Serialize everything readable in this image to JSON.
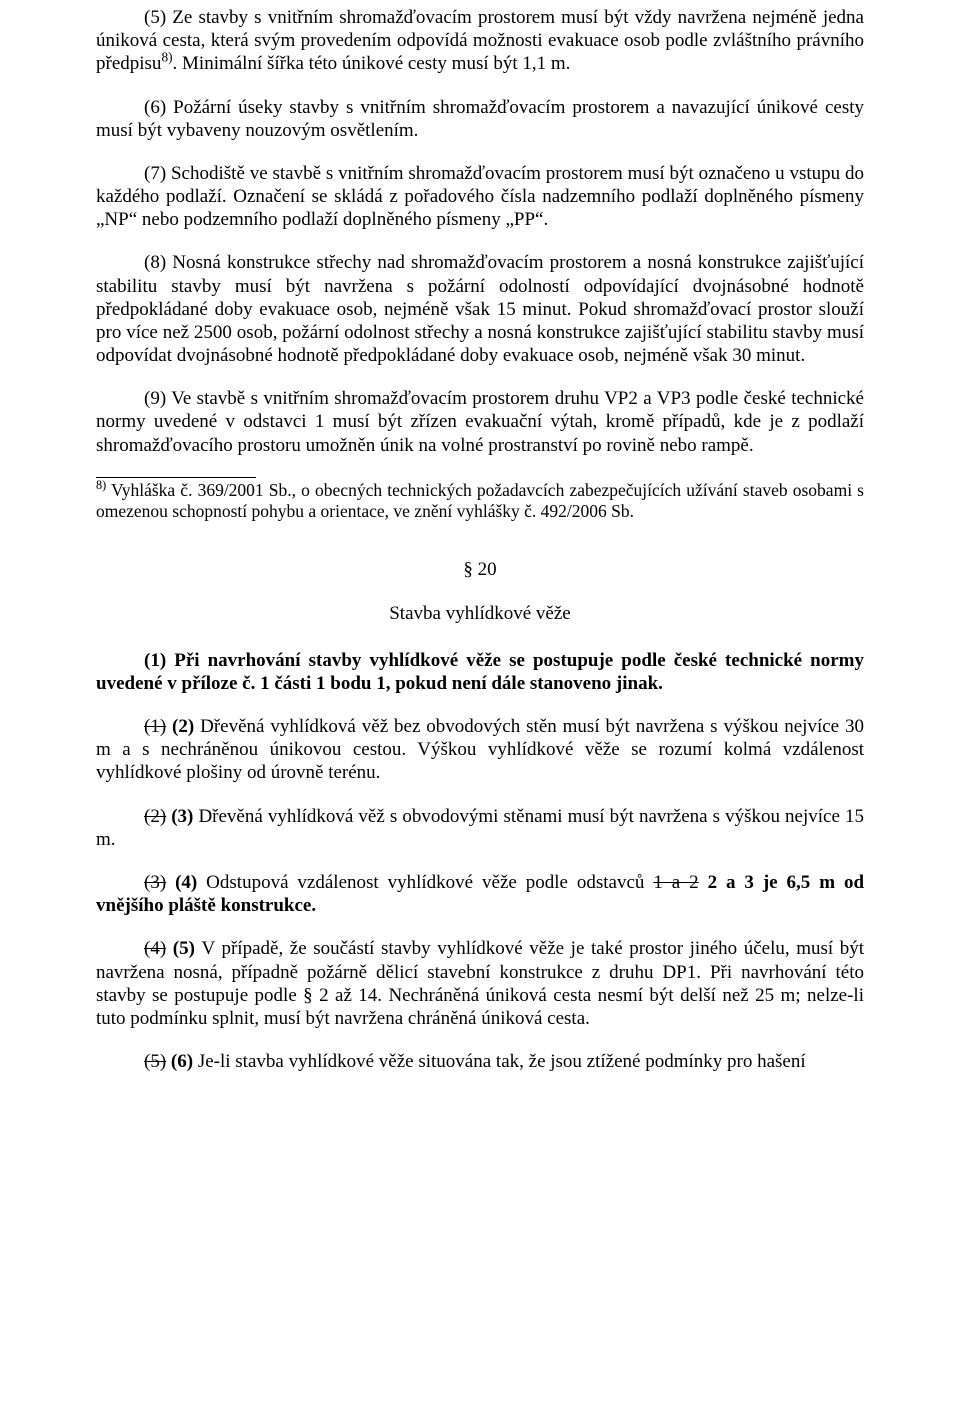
{
  "paragraphs": {
    "p5a": "(5) Ze stavby s vnitřním shromažďovacím prostorem musí být vždy navržena nejméně jedna úniková cesta, která svým provedením odpovídá možnosti evakuace osob podle zvláštního právního předpisu",
    "p5b": ". Minimální šířka této únikové cesty musí být 1,1 m.",
    "p5sup": "8)",
    "p6": "(6) Požární úseky stavby s vnitřním shromažďovacím prostorem a navazující únikové cesty musí být vybaveny nouzovým osvětlením.",
    "p7": "(7) Schodiště ve stavbě s vnitřním shromažďovacím prostorem musí být označeno u vstupu do každého podlaží. Označení se skládá z pořadového čísla nadzemního podlaží doplněného písmeny „NP“ nebo podzemního podlaží doplněného písmeny „PP“.",
    "p8": "(8) Nosná konstrukce střechy nad shromažďovacím prostorem a nosná konstrukce zajišťující stabilitu stavby musí být navržena s požární odolností odpovídající dvojnásobné hodnotě předpokládané doby evakuace osob, nejméně však 15 minut. Pokud shromažďovací prostor slouží pro více než 2500 osob, požární odolnost střechy a nosná konstrukce zajišťující stabilitu stavby musí odpovídat dvojnásobné hodnotě předpokládané doby evakuace osob, nejméně však 30 minut.",
    "p9": "(9) Ve stavbě s vnitřním shromažďovacím prostorem druhu VP2 a VP3 podle české technické normy uvedené v odstavci 1 musí být zřízen evakuační výtah, kromě případů, kde je z podlaží shromažďovacího prostoru umožněn únik na volné prostranství po rovině nebo rampě."
  },
  "footnote": {
    "sup": "8)",
    "text": " Vyhláška č. 369/2001 Sb., o obecných technických požadavcích zabezpečujících užívání staveb osobami s omezenou schopností pohybu a orientace, ve znění vyhlášky č. 492/2006 Sb."
  },
  "section": {
    "num": "§ 20",
    "title": "Stavba vyhlídkové věže"
  },
  "s20": {
    "p1": "(1) Při navrhování stavby vyhlídkové věže se postupuje podle české technické normy uvedené v příloze č. 1 části 1 bodu 1, pokud není dále stanoveno jinak.",
    "p2_old": "(1)",
    "p2_new": " (2) ",
    "p2_rest": "Dřevěná vyhlídková věž bez obvodových stěn musí být navržena s výškou nejvíce 30 m a s nechráněnou únikovou cestou. Výškou vyhlídkové věže se rozumí kolmá vzdálenost vyhlídkové plošiny od úrovně terénu.",
    "p3_old": "(2)",
    "p3_new": " (3) ",
    "p3_rest": "Dřevěná vyhlídková věž s obvodovými stěnami musí být navržena s výškou nejvíce 15 m.",
    "p4_old": "(3)",
    "p4_new": " (4) ",
    "p4_a": "Odstupová vzdálenost vyhlídkové věže podle odstavců ",
    "p4_strike": "1 a 2",
    "p4_b": " 2 a 3 je 6,5 m od vnějšího pláště konstrukce.",
    "p5_old": "(4)",
    "p5_new": " (5) ",
    "p5_rest": "V případě, že součástí stavby vyhlídkové věže je také prostor jiného účelu, musí být navržena nosná, případně požárně dělicí stavební konstrukce z druhu DP1. Při navrhování této stavby se postupuje podle § 2 až 14. Nechráněná úniková cesta nesmí být delší než 25 m; nelze-li tuto podmínku splnit, musí být navržena chráněná úniková cesta.",
    "p6_old": "(5)",
    "p6_new": " (6) ",
    "p6_rest": "Je-li stavba vyhlídkové věže situována tak, že jsou ztížené podmínky pro hašení"
  }
}
